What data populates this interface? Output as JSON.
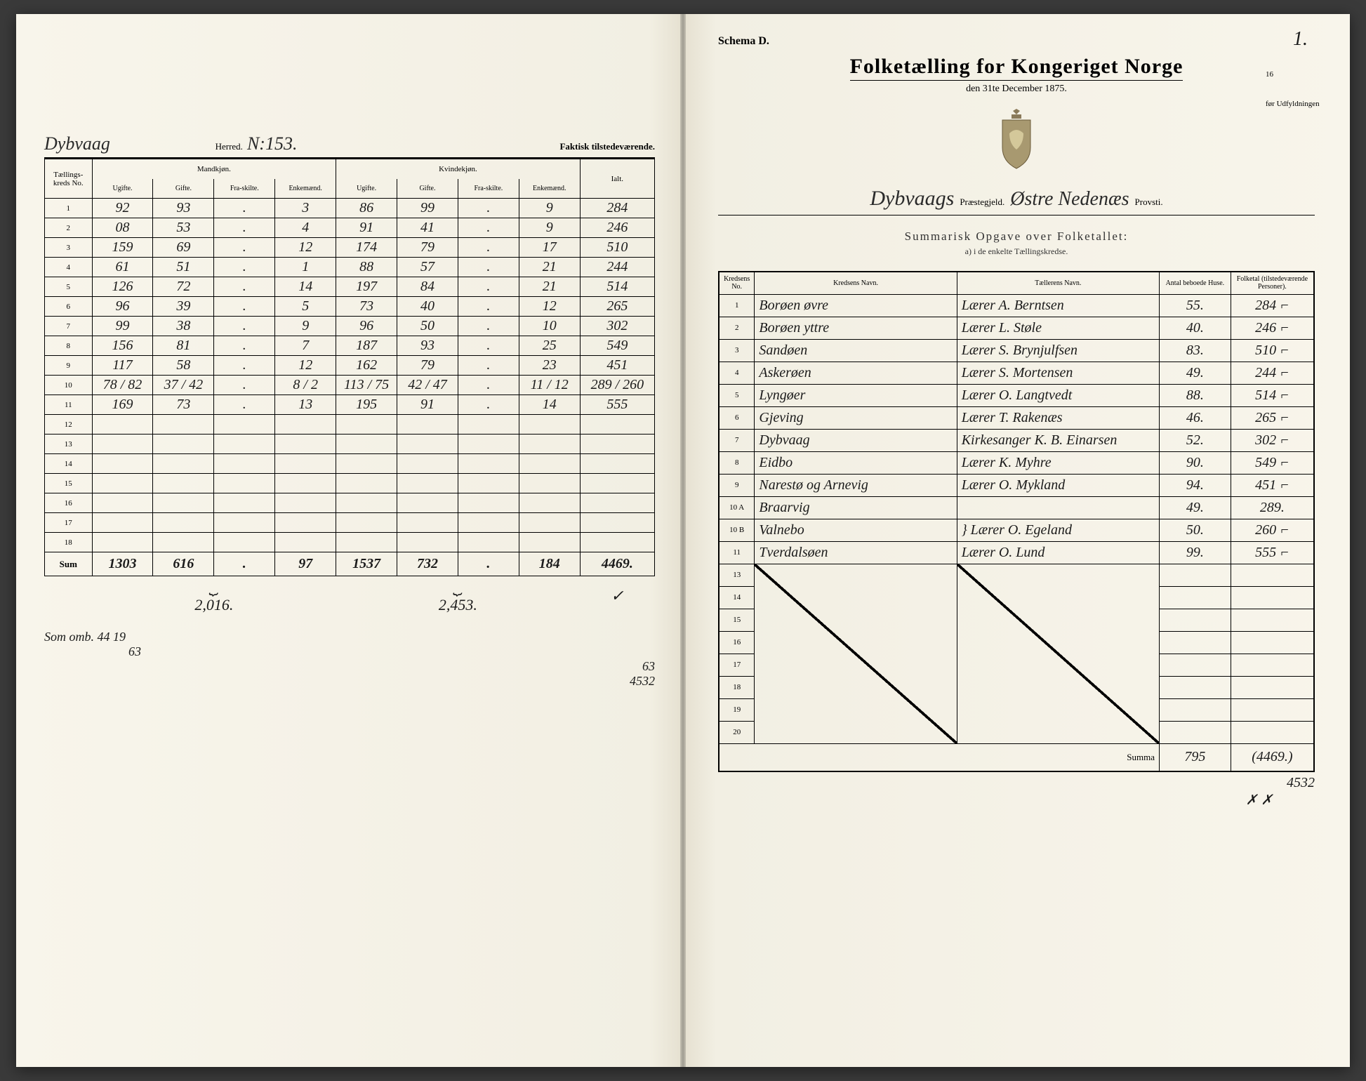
{
  "left": {
    "herred_name": "Dybvaag",
    "herred_label": "Herred.",
    "herred_no_label": "N:",
    "herred_no": "153.",
    "faktisk": "Faktisk tilstedeværende.",
    "col_kreds": "Tællings-kreds No.",
    "col_mand": "Mandkjøn.",
    "col_kvin": "Kvindekjøn.",
    "sub_ugifte": "Ugifte.",
    "sub_gifte": "Gifte.",
    "sub_fra": "Fra-skilte.",
    "sub_enkem": "Enkemænd.",
    "sub_enkek": "Enkemænd.",
    "col_ialt": "Ialt.",
    "rows": [
      {
        "n": "1",
        "mu": "92",
        "mg": "93",
        "mf": ".",
        "me": "3",
        "ku": "86",
        "kg": "99",
        "kf": ".",
        "ke": "9",
        "ialt": "284"
      },
      {
        "n": "2",
        "mu": "08",
        "mg": "53",
        "mf": ".",
        "me": "4",
        "ku": "91",
        "kg": "41",
        "kf": ".",
        "ke": "9",
        "ialt": "246"
      },
      {
        "n": "3",
        "mu": "159",
        "mg": "69",
        "mf": ".",
        "me": "12",
        "ku": "174",
        "kg": "79",
        "kf": ".",
        "ke": "17",
        "ialt": "510"
      },
      {
        "n": "4",
        "mu": "61",
        "mg": "51",
        "mf": ".",
        "me": "1",
        "ku": "88",
        "kg": "57",
        "kf": ".",
        "ke": "21",
        "ialt": "244"
      },
      {
        "n": "5",
        "mu": "126",
        "mg": "72",
        "mf": ".",
        "me": "14",
        "ku": "197",
        "kg": "84",
        "kf": ".",
        "ke": "21",
        "ialt": "514"
      },
      {
        "n": "6",
        "mu": "96",
        "mg": "39",
        "mf": ".",
        "me": "5",
        "ku": "73",
        "kg": "40",
        "kf": ".",
        "ke": "12",
        "ialt": "265"
      },
      {
        "n": "7",
        "mu": "99",
        "mg": "38",
        "mf": ".",
        "me": "9",
        "ku": "96",
        "kg": "50",
        "kf": ".",
        "ke": "10",
        "ialt": "302"
      },
      {
        "n": "8",
        "mu": "156",
        "mg": "81",
        "mf": ".",
        "me": "7",
        "ku": "187",
        "kg": "93",
        "kf": ".",
        "ke": "25",
        "ialt": "549"
      },
      {
        "n": "9",
        "mu": "117",
        "mg": "58",
        "mf": ".",
        "me": "12",
        "ku": "162",
        "kg": "79",
        "kf": ".",
        "ke": "23",
        "ialt": "451"
      },
      {
        "n": "10",
        "mu": "78 / 82",
        "mg": "37 / 42",
        "mf": ".",
        "me": "8 / 2",
        "ku": "113 / 75",
        "kg": "42 / 47",
        "kf": ".",
        "ke": "11 / 12",
        "ialt": "289 / 260"
      },
      {
        "n": "11",
        "mu": "169",
        "mg": "73",
        "mf": ".",
        "me": "13",
        "ku": "195",
        "kg": "91",
        "kf": ".",
        "ke": "14",
        "ialt": "555"
      },
      {
        "n": "12",
        "mu": "",
        "mg": "",
        "mf": "",
        "me": "",
        "ku": "",
        "kg": "",
        "kf": "",
        "ke": "",
        "ialt": ""
      },
      {
        "n": "13",
        "mu": "",
        "mg": "",
        "mf": "",
        "me": "",
        "ku": "",
        "kg": "",
        "kf": "",
        "ke": "",
        "ialt": ""
      },
      {
        "n": "14",
        "mu": "",
        "mg": "",
        "mf": "",
        "me": "",
        "ku": "",
        "kg": "",
        "kf": "",
        "ke": "",
        "ialt": ""
      },
      {
        "n": "15",
        "mu": "",
        "mg": "",
        "mf": "",
        "me": "",
        "ku": "",
        "kg": "",
        "kf": "",
        "ke": "",
        "ialt": ""
      },
      {
        "n": "16",
        "mu": "",
        "mg": "",
        "mf": "",
        "me": "",
        "ku": "",
        "kg": "",
        "kf": "",
        "ke": "",
        "ialt": ""
      },
      {
        "n": "17",
        "mu": "",
        "mg": "",
        "mf": "",
        "me": "",
        "ku": "",
        "kg": "",
        "kf": "",
        "ke": "",
        "ialt": ""
      },
      {
        "n": "18",
        "mu": "",
        "mg": "",
        "mf": "",
        "me": "",
        "ku": "",
        "kg": "",
        "kf": "",
        "ke": "",
        "ialt": ""
      }
    ],
    "sum_label": "Sum",
    "sum": {
      "mu": "1303",
      "mg": "616",
      "mf": ".",
      "me": "97",
      "ku": "1537",
      "kg": "732",
      "kf": ".",
      "ke": "184",
      "ialt": "4469."
    },
    "brace_m": "2,016.",
    "brace_k": "2,453.",
    "brace_check": "✓",
    "note1": "Som omb.  44   19",
    "note2": "63",
    "note3": "63",
    "note4": "4532"
  },
  "right": {
    "schema": "Schema D.",
    "page_no": "1.",
    "title": "Folketælling for Kongeriget Norge",
    "date": "den 31te December 1875.",
    "side_note_a": "16",
    "side_note_b": "før Udfyldningen",
    "parish_name": "Dybvaags",
    "praestegjeld": "Præstegjeld.",
    "provsti_name": "Østre Nedenæs",
    "provsti": "Provsti.",
    "summarisk": "Summarisk Opgave over Folketallet:",
    "subtext": "a) i de enkelte Tællingskredse.",
    "col_no": "Kredsens No.",
    "col_navn": "Kredsens Navn.",
    "col_taeller": "Tællerens Navn.",
    "col_huse": "Antal beboede Huse.",
    "col_folk": "Folketal (tilstedeværende Personer).",
    "rows": [
      {
        "n": "1",
        "navn": "Borøen øvre",
        "taeller": "Lærer A. Berntsen",
        "huse": "55.",
        "folk": "284 ⌐"
      },
      {
        "n": "2",
        "navn": "Borøen yttre",
        "taeller": "Lærer L. Støle",
        "huse": "40.",
        "folk": "246 ⌐"
      },
      {
        "n": "3",
        "navn": "Sandøen",
        "taeller": "Lærer S. Brynjulfsen",
        "huse": "83.",
        "folk": "510 ⌐"
      },
      {
        "n": "4",
        "navn": "Askerøen",
        "taeller": "Lærer S. Mortensen",
        "huse": "49.",
        "folk": "244 ⌐"
      },
      {
        "n": "5",
        "navn": "Lyngøer",
        "taeller": "Lærer O. Langtvedt",
        "huse": "88.",
        "folk": "514 ⌐"
      },
      {
        "n": "6",
        "navn": "Gjeving",
        "taeller": "Lærer T. Rakenæs",
        "huse": "46.",
        "folk": "265 ⌐"
      },
      {
        "n": "7",
        "navn": "Dybvaag",
        "taeller": "Kirkesanger K. B. Einarsen",
        "huse": "52.",
        "folk": "302 ⌐"
      },
      {
        "n": "8",
        "navn": "Eidbo",
        "taeller": "Lærer K. Myhre",
        "huse": "90.",
        "folk": "549 ⌐"
      },
      {
        "n": "9",
        "navn": "Narestø og Arnevig",
        "taeller": "Lærer O. Mykland",
        "huse": "94.",
        "folk": "451 ⌐"
      },
      {
        "n": "10 A",
        "navn": "Braarvig",
        "taeller": "",
        "huse": "49.",
        "folk": "289."
      },
      {
        "n": "10 B",
        "navn": "Valnebo",
        "taeller": "} Lærer O. Egeland",
        "huse": "50.",
        "folk": "260 ⌐"
      },
      {
        "n": "11",
        "navn": "Tverdalsøen",
        "taeller": "Lærer O. Lund",
        "huse": "99.",
        "folk": "555 ⌐"
      },
      {
        "n": "13",
        "navn": "",
        "taeller": "",
        "huse": "",
        "folk": ""
      },
      {
        "n": "14",
        "navn": "",
        "taeller": "",
        "huse": "",
        "folk": ""
      },
      {
        "n": "15",
        "navn": "",
        "taeller": "",
        "huse": "",
        "folk": ""
      },
      {
        "n": "16",
        "navn": "",
        "taeller": "",
        "huse": "",
        "folk": ""
      },
      {
        "n": "17",
        "navn": "",
        "taeller": "",
        "huse": "",
        "folk": ""
      },
      {
        "n": "18",
        "navn": "",
        "taeller": "",
        "huse": "",
        "folk": ""
      },
      {
        "n": "19",
        "navn": "",
        "taeller": "",
        "huse": "",
        "folk": ""
      },
      {
        "n": "20",
        "navn": "",
        "taeller": "",
        "huse": "",
        "folk": ""
      }
    ],
    "summa_label": "Summa",
    "summa_huse": "795",
    "summa_folk": "(4469.)",
    "below_note1": "4532",
    "below_x": "✗          ✗"
  },
  "colors": {
    "paper": "#f5f2e8",
    "ink": "#1a1a1a",
    "line": "#000000"
  }
}
